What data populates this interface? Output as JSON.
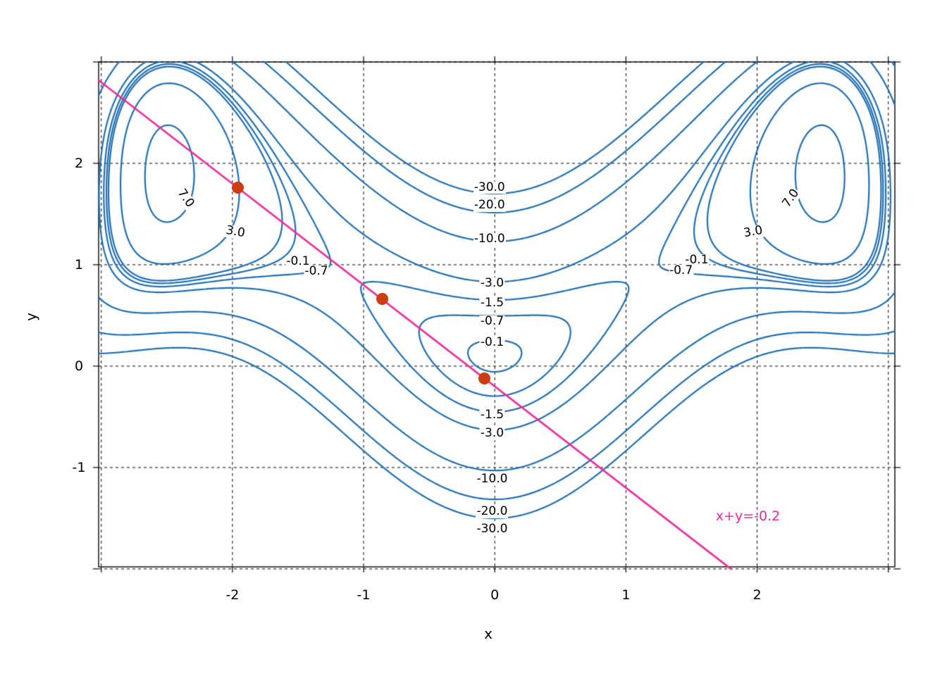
{
  "chart_data": {
    "type": "contour",
    "title": "",
    "xlabel": "x",
    "ylabel": "y",
    "xlim": [
      -3.02,
      3.05
    ],
    "ylim": [
      -1.98,
      3.0
    ],
    "x_ticks": [
      -2,
      -1,
      0,
      1,
      2
    ],
    "x_tick_labels": [
      "-2",
      "-1",
      "0",
      "1",
      "2"
    ],
    "y_ticks": [
      -1,
      0,
      1,
      2
    ],
    "y_tick_labels": [
      "-1",
      "0",
      "1",
      "2"
    ],
    "grid_x": [
      -3,
      -2,
      -1,
      0,
      1,
      2,
      3
    ],
    "grid_y": [
      -2,
      -1,
      0,
      1,
      2,
      3
    ],
    "grid_style": "dashed",
    "contour": {
      "color": "#1f6eb0",
      "levels": [
        7,
        3,
        -0.1,
        -0.7,
        -1.5,
        -3,
        -10,
        -20,
        -30
      ],
      "labels": [
        {
          "text": "7.0",
          "x": -2.36,
          "y": 1.65,
          "rot": 55
        },
        {
          "text": "7.0",
          "x": 2.26,
          "y": 1.65,
          "rot": -55
        },
        {
          "text": "3.0",
          "x": -1.98,
          "y": 1.32,
          "rot": 10
        },
        {
          "text": "3.0",
          "x": 1.97,
          "y": 1.32,
          "rot": -10
        },
        {
          "text": "-0.1",
          "x": -1.5,
          "y": 1.03,
          "rot": 0
        },
        {
          "text": "-0.7",
          "x": -1.36,
          "y": 0.93,
          "rot": 0
        },
        {
          "text": "-0.1",
          "x": 1.54,
          "y": 1.04,
          "rot": 0
        },
        {
          "text": "-0.7",
          "x": 1.42,
          "y": 0.94,
          "rot": 0
        },
        {
          "text": "-30.0",
          "x": -0.04,
          "y": 1.76,
          "rot": 0
        },
        {
          "text": "-20.0",
          "x": -0.04,
          "y": 1.58,
          "rot": 0
        },
        {
          "text": "-10.0",
          "x": -0.04,
          "y": 1.25,
          "rot": 0
        },
        {
          "text": "-3.0",
          "x": -0.02,
          "y": 0.81,
          "rot": 0
        },
        {
          "text": "-1.5",
          "x": -0.02,
          "y": 0.62,
          "rot": 0
        },
        {
          "text": "-0.7",
          "x": -0.02,
          "y": 0.44,
          "rot": 0
        },
        {
          "text": "-0.1",
          "x": -0.02,
          "y": 0.23,
          "rot": 0
        },
        {
          "text": "-1.5",
          "x": -0.02,
          "y": -0.49,
          "rot": 0
        },
        {
          "text": "-3.0",
          "x": -0.02,
          "y": -0.67,
          "rot": 0
        },
        {
          "text": "-10.0",
          "x": -0.02,
          "y": -1.12,
          "rot": 0
        },
        {
          "text": "-20.0",
          "x": -0.02,
          "y": -1.44,
          "rot": 0
        },
        {
          "text": "-30.0",
          "x": -0.02,
          "y": -1.61,
          "rot": 0
        }
      ]
    },
    "constraint_line": {
      "label": "x+y=-0.2",
      "equation": "x+y=-0.2",
      "color": "#ec2c9a",
      "x_start": -3.02,
      "x_end": 1.8,
      "label_pos": [
        1.93,
        -1.48
      ]
    },
    "points": {
      "color": "#cc3d11",
      "radius_px": 8.5,
      "items": [
        [
          -1.96,
          1.76
        ],
        [
          -0.86,
          0.66
        ],
        [
          -0.08,
          -0.12
        ]
      ]
    }
  }
}
